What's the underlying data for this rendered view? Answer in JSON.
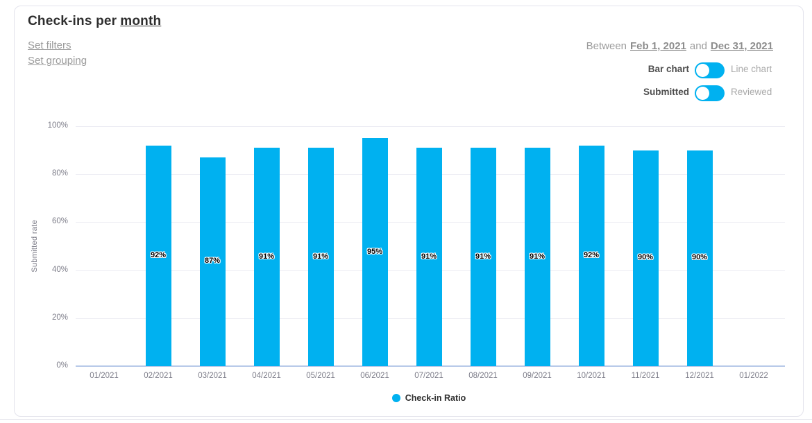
{
  "header": {
    "title_prefix": "Check-ins per",
    "title_grouping": "month",
    "set_filters_label": "Set filters",
    "set_grouping_label": "Set grouping"
  },
  "controls": {
    "date_range": {
      "between_label": "Between",
      "start_date": "Feb 1, 2021",
      "and_label": "and",
      "end_date": "Dec 31, 2021"
    },
    "chart_type_toggle": {
      "left_label": "Bar chart",
      "right_label": "Line chart",
      "state": "left"
    },
    "metric_toggle": {
      "left_label": "Submitted",
      "right_label": "Reviewed",
      "state": "left"
    }
  },
  "chart_data": {
    "type": "bar",
    "title": "Check-ins per month",
    "xlabel": "",
    "ylabel": "Submitted rate",
    "categories": [
      "01/2021",
      "02/2021",
      "03/2021",
      "04/2021",
      "05/2021",
      "06/2021",
      "07/2021",
      "08/2021",
      "09/2021",
      "10/2021",
      "11/2021",
      "12/2021",
      "01/2022"
    ],
    "series": [
      {
        "name": "Check-in Ratio",
        "values": [
          null,
          92,
          87,
          91,
          91,
          95,
          91,
          91,
          91,
          92,
          90,
          90,
          null
        ]
      }
    ],
    "value_suffix": "%",
    "y_ticks": [
      0,
      20,
      40,
      60,
      80,
      100
    ],
    "y_tick_suffix": "%",
    "ylim": [
      0,
      100
    ],
    "grid": true,
    "legend": {
      "label": "Check-in Ratio",
      "position": "bottom"
    },
    "colors": {
      "accent": "#00b1f0",
      "bar": "#00b1f0",
      "gridline": "#ececf3",
      "zero_line": "#b7c9e8"
    }
  }
}
